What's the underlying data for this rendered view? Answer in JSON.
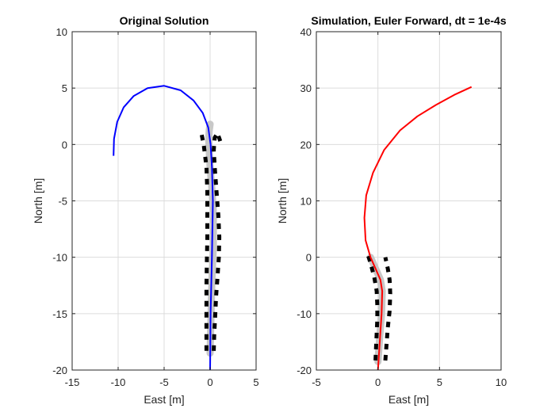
{
  "chart_data": [
    {
      "type": "line",
      "title": "Original Solution",
      "xlabel": "East [m]",
      "ylabel": "North [m]",
      "xlim": [
        -15,
        5
      ],
      "ylim": [
        -20,
        10
      ],
      "xticks": [
        -15,
        -10,
        -5,
        0,
        5
      ],
      "yticks": [
        -20,
        -15,
        -10,
        -5,
        0,
        5,
        10
      ],
      "xtick_labels": [
        "-15",
        "-10",
        "-5",
        "0",
        "5"
      ],
      "ytick_labels": [
        "-20",
        "-15",
        "-10",
        "-5",
        "0",
        "5",
        "10"
      ],
      "grid": true,
      "legend": "none",
      "series": [
        {
          "role": "trajectory",
          "color": "#0000ff",
          "x": [
            0.0,
            0.05,
            0.2,
            0.3,
            0.2,
            0.05,
            -0.2,
            -0.8,
            -1.8,
            -3.2,
            -5.0,
            -6.8,
            -8.3,
            -9.4,
            -10.1,
            -10.45,
            -10.5
          ],
          "y": [
            -20.0,
            -15.0,
            -10.0,
            -5.0,
            -2.0,
            0.0,
            1.5,
            2.8,
            3.9,
            4.8,
            5.2,
            5.0,
            4.3,
            3.3,
            2.0,
            0.5,
            -1.0
          ]
        },
        {
          "role": "reference-path-band",
          "color": "#c8c8c8",
          "x": [
            0.0,
            0.1,
            0.2,
            0.35,
            0.35,
            0.2,
            0.0,
            -0.1,
            -0.15,
            -0.1,
            0.0
          ],
          "y": [
            -18.5,
            -15.0,
            -12.0,
            -9.0,
            -6.0,
            -4.0,
            -2.0,
            -0.5,
            0.5,
            1.2,
            1.8
          ]
        }
      ],
      "boundary_markers": {
        "color": "#000000",
        "left": {
          "x": [
            -0.4,
            -0.4,
            -0.4,
            -0.4,
            -0.35,
            -0.3,
            -0.3,
            -0.3,
            -0.4,
            -0.7,
            -1.0
          ],
          "y": [
            -18.3,
            -16.5,
            -14.6,
            -12.5,
            -10.4,
            -8.3,
            -6.3,
            -4.2,
            -2.0,
            0.0,
            1.2
          ]
        },
        "right": {
          "x": [
            0.4,
            0.45,
            0.55,
            0.65,
            0.8,
            0.95,
            1.0,
            0.9,
            0.7,
            0.5,
            0.4,
            0.5,
            0.8,
            1.1
          ],
          "y": [
            -18.3,
            -16.8,
            -15.2,
            -13.5,
            -11.8,
            -10.0,
            -8.2,
            -6.3,
            -4.2,
            -2.0,
            -0.5,
            0.6,
            1.0,
            0.3
          ]
        }
      }
    },
    {
      "type": "line",
      "title": "Simulation, Euler Forward, dt = 1e-4s",
      "xlabel": "East [m]",
      "ylabel": "North [m]",
      "xlim": [
        -5,
        10
      ],
      "ylim": [
        -20,
        40
      ],
      "xticks": [
        -5,
        0,
        5,
        10
      ],
      "yticks": [
        -20,
        -10,
        0,
        10,
        20,
        30,
        40
      ],
      "xtick_labels": [
        "-5",
        "0",
        "5",
        "10"
      ],
      "ytick_labels": [
        "-20",
        "-10",
        "0",
        "10",
        "20",
        "30",
        "40"
      ],
      "grid": true,
      "legend": "none",
      "series": [
        {
          "role": "trajectory",
          "color": "#ff0000",
          "x": [
            0.0,
            0.15,
            0.3,
            0.35,
            0.2,
            -0.2,
            -0.6,
            -1.0,
            -1.1,
            -0.95,
            -0.4,
            0.5,
            1.8,
            3.2,
            4.7,
            6.2,
            7.6
          ],
          "y": [
            -20.0,
            -15.0,
            -10.0,
            -6.0,
            -4.0,
            -2.0,
            0.0,
            3.0,
            7.0,
            11.0,
            15.0,
            19.0,
            22.5,
            25.0,
            27.0,
            28.8,
            30.2
          ]
        },
        {
          "role": "reference-path-band",
          "color": "#c8c8c8",
          "x": [
            0.0,
            0.15,
            0.3,
            0.35,
            0.2,
            -0.2,
            -0.6
          ],
          "y": [
            -18.5,
            -14.0,
            -10.0,
            -6.0,
            -4.0,
            -2.0,
            0.0
          ]
        }
      ],
      "boundary_markers": {
        "color": "#000000",
        "left": {
          "x": [
            -0.2,
            -0.15,
            -0.1,
            -0.05,
            -0.05,
            -0.1,
            -0.3,
            -0.6,
            -0.9
          ],
          "y": [
            -18.3,
            -16.0,
            -13.5,
            -11.0,
            -8.5,
            -6.0,
            -3.5,
            -1.0,
            1.0
          ]
        },
        "right": {
          "x": [
            0.6,
            0.7,
            0.8,
            0.95,
            1.0,
            0.95,
            0.8,
            0.6
          ],
          "y": [
            -18.3,
            -15.5,
            -12.5,
            -9.5,
            -6.5,
            -4.0,
            -2.0,
            0.0
          ]
        }
      }
    }
  ]
}
